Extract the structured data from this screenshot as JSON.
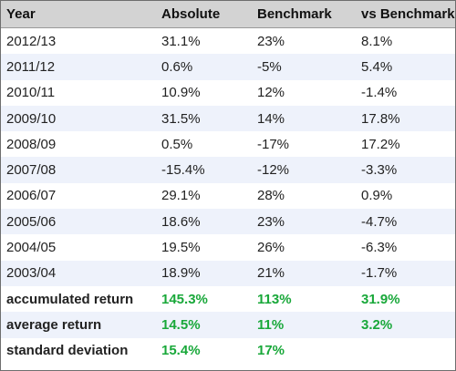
{
  "table": {
    "headers": [
      "Year",
      "Absolute",
      "Benchmark",
      "vs Benchmark"
    ],
    "rows": [
      [
        "2012/13",
        "31.1%",
        "23%",
        "8.1%"
      ],
      [
        "2011/12",
        "0.6%",
        "-5%",
        "5.4%"
      ],
      [
        "2010/11",
        "10.9%",
        "12%",
        "-1.4%"
      ],
      [
        "2009/10",
        "31.5%",
        "14%",
        "17.8%"
      ],
      [
        "2008/09",
        "0.5%",
        "-17%",
        "17.2%"
      ],
      [
        "2007/08",
        "-15.4%",
        "-12%",
        "-3.3%"
      ],
      [
        "2006/07",
        "29.1%",
        "28%",
        "0.9%"
      ],
      [
        "2005/06",
        "18.6%",
        "23%",
        "-4.7%"
      ],
      [
        "2004/05",
        "19.5%",
        "26%",
        "-6.3%"
      ],
      [
        "2003/04",
        "18.9%",
        "21%",
        "-1.7%"
      ]
    ],
    "summary": [
      [
        "accumulated return",
        "145.3%",
        "113%",
        "31.9%"
      ],
      [
        "average return",
        "14.5%",
        "11%",
        "3.2%"
      ],
      [
        "standard deviation",
        "15.4%",
        "17%",
        ""
      ]
    ],
    "summary_value_color": "#19a83a",
    "header_bg": "#d3d3d3",
    "stripe_bg": "#eef2fb"
  }
}
